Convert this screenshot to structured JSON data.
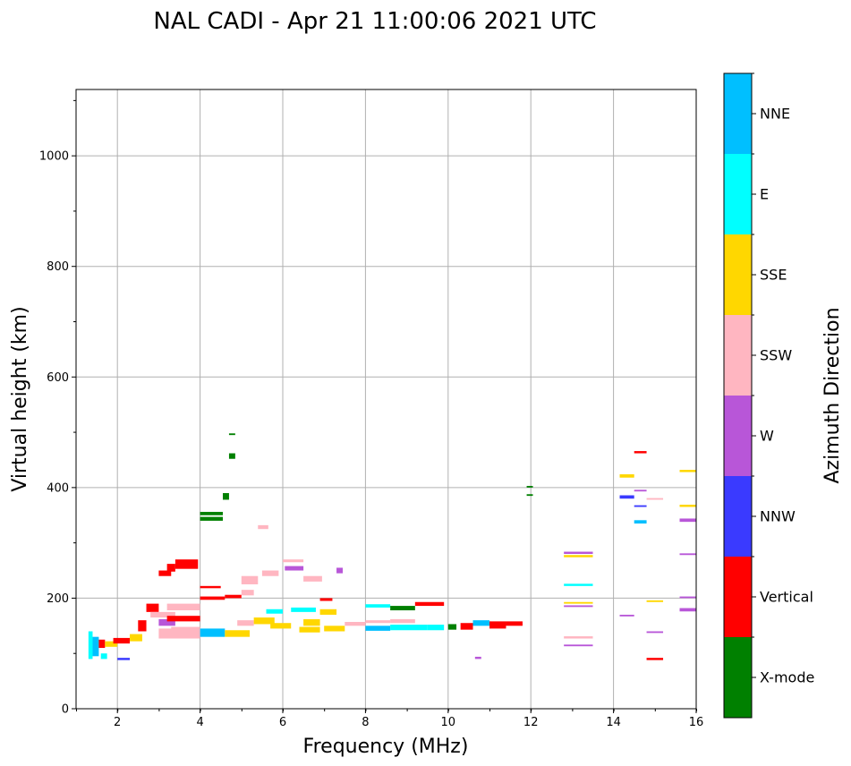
{
  "chart_data": {
    "type": "scatter",
    "title": "NAL CADI - Apr 21 11:00:06 2021 UTC",
    "xlabel": "Frequency (MHz)",
    "ylabel": "Virtual height (km)",
    "xlim": [
      1,
      16
    ],
    "ylim": [
      0,
      1120
    ],
    "xticks": [
      2,
      4,
      6,
      8,
      10,
      12,
      14,
      16
    ],
    "yticks": [
      0,
      200,
      400,
      600,
      800,
      1000
    ],
    "grid": true,
    "colorbar": {
      "label": "Azimuth Direction",
      "categories": [
        {
          "name": "X-mode",
          "color": "#008000"
        },
        {
          "name": "Vertical",
          "color": "#ff0000"
        },
        {
          "name": "NNW",
          "color": "#3a3aff"
        },
        {
          "name": "W",
          "color": "#b856d8"
        },
        {
          "name": "SSW",
          "color": "#ffb6c1"
        },
        {
          "name": "SSE",
          "color": "#ffd700"
        },
        {
          "name": "E",
          "color": "#00ffff"
        },
        {
          "name": "NNE",
          "color": "#00bfff"
        }
      ]
    },
    "segments": [
      {
        "x0": 1.3,
        "x1": 1.4,
        "y0": 90,
        "y1": 140,
        "c": "E"
      },
      {
        "x0": 1.4,
        "x1": 1.55,
        "y0": 95,
        "y1": 130,
        "c": "NNE"
      },
      {
        "x0": 1.55,
        "x1": 1.7,
        "y0": 110,
        "y1": 125,
        "c": "Vertical"
      },
      {
        "x0": 1.6,
        "x1": 1.75,
        "y0": 90,
        "y1": 100,
        "c": "E"
      },
      {
        "x0": 1.7,
        "x1": 2.0,
        "y0": 112,
        "y1": 122,
        "c": "SSE"
      },
      {
        "x0": 1.9,
        "x1": 2.3,
        "y0": 118,
        "y1": 128,
        "c": "Vertical"
      },
      {
        "x0": 2.0,
        "x1": 2.3,
        "y0": 88,
        "y1": 92,
        "c": "NNW"
      },
      {
        "x0": 2.3,
        "x1": 2.6,
        "y0": 122,
        "y1": 135,
        "c": "SSE"
      },
      {
        "x0": 2.5,
        "x1": 2.7,
        "y0": 140,
        "y1": 160,
        "c": "Vertical"
      },
      {
        "x0": 2.7,
        "x1": 3.0,
        "y0": 175,
        "y1": 190,
        "c": "Vertical"
      },
      {
        "x0": 2.8,
        "x1": 3.4,
        "y0": 165,
        "y1": 175,
        "c": "SSW"
      },
      {
        "x0": 3.0,
        "x1": 3.4,
        "y0": 150,
        "y1": 162,
        "c": "W"
      },
      {
        "x0": 3.2,
        "x1": 4.0,
        "y0": 178,
        "y1": 190,
        "c": "SSW"
      },
      {
        "x0": 3.2,
        "x1": 4.0,
        "y0": 158,
        "y1": 168,
        "c": "Vertical"
      },
      {
        "x0": 3.0,
        "x1": 4.0,
        "y0": 127,
        "y1": 145,
        "c": "SSW"
      },
      {
        "x0": 3.3,
        "x1": 4.0,
        "y0": 140,
        "y1": 148,
        "c": "SSW"
      },
      {
        "x0": 3.0,
        "x1": 3.3,
        "y0": 240,
        "y1": 250,
        "c": "Vertical"
      },
      {
        "x0": 3.2,
        "x1": 3.4,
        "y0": 248,
        "y1": 262,
        "c": "Vertical"
      },
      {
        "x0": 3.4,
        "x1": 3.95,
        "y0": 253,
        "y1": 270,
        "c": "Vertical"
      },
      {
        "x0": 4.0,
        "x1": 4.6,
        "y0": 130,
        "y1": 145,
        "c": "NNE"
      },
      {
        "x0": 4.0,
        "x1": 4.6,
        "y0": 197,
        "y1": 203,
        "c": "Vertical"
      },
      {
        "x0": 4.0,
        "x1": 4.5,
        "y0": 218,
        "y1": 222,
        "c": "Vertical"
      },
      {
        "x0": 4.0,
        "x1": 4.55,
        "y0": 340,
        "y1": 347,
        "c": "X-mode"
      },
      {
        "x0": 4.0,
        "x1": 4.55,
        "y0": 350,
        "y1": 356,
        "c": "X-mode"
      },
      {
        "x0": 4.55,
        "x1": 4.7,
        "y0": 378,
        "y1": 390,
        "c": "X-mode"
      },
      {
        "x0": 4.7,
        "x1": 4.85,
        "y0": 452,
        "y1": 462,
        "c": "X-mode"
      },
      {
        "x0": 4.7,
        "x1": 4.85,
        "y0": 495,
        "y1": 498,
        "c": "X-mode"
      },
      {
        "x0": 4.6,
        "x1": 5.0,
        "y0": 200,
        "y1": 206,
        "c": "Vertical"
      },
      {
        "x0": 4.6,
        "x1": 5.2,
        "y0": 130,
        "y1": 142,
        "c": "SSE"
      },
      {
        "x0": 4.9,
        "x1": 5.3,
        "y0": 150,
        "y1": 160,
        "c": "SSW"
      },
      {
        "x0": 5.0,
        "x1": 5.3,
        "y0": 205,
        "y1": 215,
        "c": "SSW"
      },
      {
        "x0": 5.0,
        "x1": 5.4,
        "y0": 225,
        "y1": 240,
        "c": "SSW"
      },
      {
        "x0": 5.3,
        "x1": 5.8,
        "y0": 153,
        "y1": 165,
        "c": "SSE"
      },
      {
        "x0": 5.5,
        "x1": 5.9,
        "y0": 240,
        "y1": 250,
        "c": "SSW"
      },
      {
        "x0": 5.6,
        "x1": 6.0,
        "y0": 172,
        "y1": 180,
        "c": "E"
      },
      {
        "x0": 5.7,
        "x1": 6.2,
        "y0": 145,
        "y1": 155,
        "c": "SSE"
      },
      {
        "x0": 5.4,
        "x1": 5.65,
        "y0": 325,
        "y1": 332,
        "c": "SSW"
      },
      {
        "x0": 6.05,
        "x1": 6.5,
        "y0": 250,
        "y1": 258,
        "c": "W"
      },
      {
        "x0": 6.0,
        "x1": 6.5,
        "y0": 265,
        "y1": 270,
        "c": "SSW"
      },
      {
        "x0": 6.2,
        "x1": 6.8,
        "y0": 175,
        "y1": 183,
        "c": "E"
      },
      {
        "x0": 6.4,
        "x1": 6.9,
        "y0": 138,
        "y1": 148,
        "c": "SSE"
      },
      {
        "x0": 6.5,
        "x1": 6.9,
        "y0": 150,
        "y1": 162,
        "c": "SSE"
      },
      {
        "x0": 6.5,
        "x1": 6.95,
        "y0": 230,
        "y1": 240,
        "c": "SSW"
      },
      {
        "x0": 6.9,
        "x1": 7.3,
        "y0": 170,
        "y1": 180,
        "c": "SSE"
      },
      {
        "x0": 6.9,
        "x1": 7.2,
        "y0": 195,
        "y1": 200,
        "c": "Vertical"
      },
      {
        "x0": 7.0,
        "x1": 7.5,
        "y0": 140,
        "y1": 150,
        "c": "SSE"
      },
      {
        "x0": 7.3,
        "x1": 7.45,
        "y0": 245,
        "y1": 255,
        "c": "W"
      },
      {
        "x0": 7.5,
        "x1": 8.0,
        "y0": 150,
        "y1": 157,
        "c": "SSW"
      },
      {
        "x0": 8.0,
        "x1": 8.6,
        "y0": 183,
        "y1": 189,
        "c": "E"
      },
      {
        "x0": 8.0,
        "x1": 8.6,
        "y0": 141,
        "y1": 150,
        "c": "NNE"
      },
      {
        "x0": 8.0,
        "x1": 8.6,
        "y0": 155,
        "y1": 160,
        "c": "SSW"
      },
      {
        "x0": 8.6,
        "x1": 9.2,
        "y0": 178,
        "y1": 186,
        "c": "X-mode"
      },
      {
        "x0": 8.6,
        "x1": 9.2,
        "y0": 155,
        "y1": 162,
        "c": "SSW"
      },
      {
        "x0": 8.6,
        "x1": 9.5,
        "y0": 142,
        "y1": 152,
        "c": "E"
      },
      {
        "x0": 9.2,
        "x1": 9.9,
        "y0": 186,
        "y1": 193,
        "c": "Vertical"
      },
      {
        "x0": 9.5,
        "x1": 9.9,
        "y0": 142,
        "y1": 152,
        "c": "E"
      },
      {
        "x0": 10.0,
        "x1": 10.2,
        "y0": 143,
        "y1": 153,
        "c": "X-mode"
      },
      {
        "x0": 10.3,
        "x1": 10.6,
        "y0": 143,
        "y1": 155,
        "c": "Vertical"
      },
      {
        "x0": 10.6,
        "x1": 11.0,
        "y0": 150,
        "y1": 160,
        "c": "NNE"
      },
      {
        "x0": 11.0,
        "x1": 11.4,
        "y0": 145,
        "y1": 158,
        "c": "Vertical"
      },
      {
        "x0": 11.4,
        "x1": 11.8,
        "y0": 150,
        "y1": 158,
        "c": "Vertical"
      },
      {
        "x0": 10.65,
        "x1": 10.8,
        "y0": 90,
        "y1": 94,
        "c": "W"
      },
      {
        "x0": 11.9,
        "x1": 12.05,
        "y0": 385,
        "y1": 388,
        "c": "X-mode"
      },
      {
        "x0": 11.9,
        "x1": 12.05,
        "y0": 400,
        "y1": 403,
        "c": "X-mode"
      },
      {
        "x0": 12.8,
        "x1": 13.5,
        "y0": 280,
        "y1": 284,
        "c": "W"
      },
      {
        "x0": 12.8,
        "x1": 13.5,
        "y0": 274,
        "y1": 278,
        "c": "SSE"
      },
      {
        "x0": 12.8,
        "x1": 13.5,
        "y0": 222,
        "y1": 226,
        "c": "E"
      },
      {
        "x0": 12.8,
        "x1": 13.5,
        "y0": 190,
        "y1": 193,
        "c": "SSE"
      },
      {
        "x0": 12.8,
        "x1": 13.5,
        "y0": 184,
        "y1": 187,
        "c": "W"
      },
      {
        "x0": 12.8,
        "x1": 13.5,
        "y0": 127,
        "y1": 131,
        "c": "SSW"
      },
      {
        "x0": 12.8,
        "x1": 13.5,
        "y0": 113,
        "y1": 116,
        "c": "W"
      },
      {
        "x0": 14.15,
        "x1": 14.5,
        "y0": 418,
        "y1": 424,
        "c": "SSE"
      },
      {
        "x0": 14.15,
        "x1": 14.5,
        "y0": 380,
        "y1": 386,
        "c": "NNW"
      },
      {
        "x0": 14.5,
        "x1": 14.8,
        "y0": 462,
        "y1": 466,
        "c": "Vertical"
      },
      {
        "x0": 14.5,
        "x1": 14.8,
        "y0": 393,
        "y1": 396,
        "c": "W"
      },
      {
        "x0": 14.5,
        "x1": 14.8,
        "y0": 365,
        "y1": 368,
        "c": "NNW"
      },
      {
        "x0": 14.5,
        "x1": 14.8,
        "y0": 335,
        "y1": 341,
        "c": "NNE"
      },
      {
        "x0": 14.15,
        "x1": 14.5,
        "y0": 167,
        "y1": 170,
        "c": "W"
      },
      {
        "x0": 14.8,
        "x1": 15.2,
        "y0": 378,
        "y1": 381,
        "c": "SSW"
      },
      {
        "x0": 14.8,
        "x1": 15.2,
        "y0": 193,
        "y1": 196,
        "c": "SSE"
      },
      {
        "x0": 14.8,
        "x1": 15.2,
        "y0": 137,
        "y1": 140,
        "c": "W"
      },
      {
        "x0": 14.8,
        "x1": 15.2,
        "y0": 88,
        "y1": 92,
        "c": "Vertical"
      },
      {
        "x0": 15.6,
        "x1": 16.0,
        "y0": 428,
        "y1": 432,
        "c": "SSE"
      },
      {
        "x0": 15.6,
        "x1": 16.0,
        "y0": 365,
        "y1": 369,
        "c": "SSE"
      },
      {
        "x0": 15.6,
        "x1": 16.0,
        "y0": 338,
        "y1": 344,
        "c": "W"
      },
      {
        "x0": 15.6,
        "x1": 16.0,
        "y0": 278,
        "y1": 281,
        "c": "W"
      },
      {
        "x0": 15.6,
        "x1": 16.0,
        "y0": 200,
        "y1": 203,
        "c": "W"
      },
      {
        "x0": 15.6,
        "x1": 16.0,
        "y0": 176,
        "y1": 182,
        "c": "W"
      }
    ]
  }
}
